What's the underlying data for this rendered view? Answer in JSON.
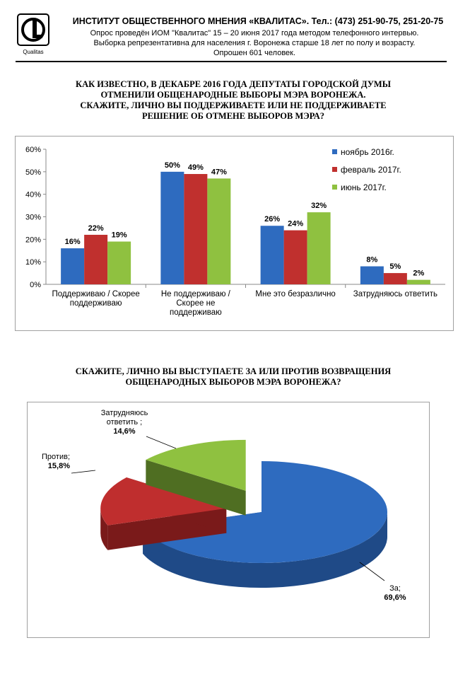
{
  "header": {
    "title": "ИНСТИТУТ ОБЩЕСТВЕННОГО МНЕНИЯ «КВАЛИТАС». Тел.: (473) 251-90-75, 251-20-75",
    "line1": "Опрос проведён ИОМ \"Квалитас\" 15 – 20 июня 2017 года методом телефонного интервью.",
    "line2": "Выборка репрезентативна для населения г. Воронежа старше 18 лет по полу и возрасту.",
    "line3": "Опрошен 601 человек.",
    "logo_text": "Qualitas"
  },
  "question1": {
    "line1": "КАК ИЗВЕСТНО, В ДЕКАБРЕ 2016 ГОДА ДЕПУТАТЫ ГОРОДСКОЙ ДУМЫ",
    "line2": "ОТМЕНИЛИ ОБЩЕНАРОДНЫЕ ВЫБОРЫ МЭРА ВОРОНЕЖА.",
    "line3": "СКАЖИТЕ, ЛИЧНО ВЫ ПОДДЕРЖИВАЕТЕ ИЛИ НЕ ПОДДЕРЖИВАЕТЕ",
    "line4": "РЕШЕНИЕ ОБ ОТМЕНЕ ВЫБОРОВ МЭРА?"
  },
  "question2": {
    "line1": "СКАЖИТЕ, ЛИЧНО ВЫ ВЫСТУПАЕТЕ ЗА ИЛИ ПРОТИВ ВОЗВРАЩЕНИЯ",
    "line2": "ОБЩЕНАРОДНЫХ ВЫБОРОВ МЭРА ВОРОНЕЖА?"
  },
  "chart_data": [
    {
      "type": "bar",
      "categories": [
        [
          "Поддерживаю / Скорее",
          "поддерживаю"
        ],
        [
          "Не поддерживаю /",
          "Скорее не",
          "поддерживаю"
        ],
        [
          "Мне это безразлично"
        ],
        [
          "Затрудняюсь ответить"
        ]
      ],
      "series": [
        {
          "name": "ноябрь 2016г.",
          "values": [
            16,
            50,
            26,
            8
          ],
          "labels": [
            "16%",
            "50%",
            "26%",
            "8%"
          ],
          "color": "#2e6bbf"
        },
        {
          "name": "февраль 2017г.",
          "values": [
            22,
            49,
            24,
            5
          ],
          "labels": [
            "22%",
            "49%",
            "24%",
            "5%"
          ],
          "color": "#c0302e"
        },
        {
          "name": "июнь 2017г.",
          "values": [
            19,
            47,
            32,
            2
          ],
          "labels": [
            "19%",
            "47%",
            "32%",
            "2%"
          ],
          "color": "#8fc140"
        }
      ],
      "yticks": [
        "0%",
        "10%",
        "20%",
        "30%",
        "40%",
        "50%",
        "60%"
      ],
      "ylim": [
        0,
        60
      ],
      "grid": false,
      "legend": "top-right"
    },
    {
      "type": "pie",
      "slices": [
        {
          "label": "За;",
          "value": 69.6,
          "value_text": "69,6%",
          "color": "#2e6bbf",
          "side": "#1f4a87"
        },
        {
          "label": "Против;",
          "value": 15.8,
          "value_text": "15,8%",
          "color": "#bf2e2e",
          "side": "#7a1a1a"
        },
        {
          "label": "Затрудняюсь ответить ;",
          "value": 14.6,
          "value_text": "14,6%",
          "color": "#8fc140",
          "side": "#4f6e22"
        }
      ]
    }
  ]
}
